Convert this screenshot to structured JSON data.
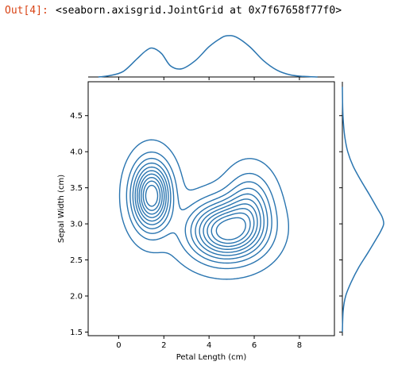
{
  "cell": {
    "prompt": "Out[4]:",
    "text": "<seaborn.axisgrid.JointGrid at 0x7f67658f77f0>"
  },
  "chart_data": {
    "type": "kde-joint",
    "xlabel": "Petal Length (cm)",
    "ylabel": "Sepal Width (cm)",
    "xlim": [
      -1.35,
      9.55
    ],
    "ylim": [
      1.45,
      4.97
    ],
    "xticks": [
      "0",
      "2",
      "4",
      "6",
      "8"
    ],
    "xtick_values": [
      0,
      2,
      4,
      6,
      8
    ],
    "yticks": [
      "1.5",
      "2.0",
      "2.5",
      "3.0",
      "3.5",
      "4.0",
      "4.5"
    ],
    "ytick_values": [
      1.5,
      2.0,
      2.5,
      3.0,
      3.5,
      4.0,
      4.5
    ],
    "line_color": "#2a75b0",
    "components": [
      {
        "cx": 1.46,
        "cy": 3.39,
        "sx": 0.55,
        "sy": 0.3,
        "weight": 0.33
      },
      {
        "cx": 4.75,
        "cy": 2.9,
        "sx": 1.05,
        "sy": 0.26,
        "weight": 0.52
      },
      {
        "cx": 5.8,
        "cy": 3.25,
        "sx": 0.65,
        "sy": 0.3,
        "weight": 0.15
      }
    ],
    "contour_levels": 10,
    "top_marginal": {
      "axis": "x",
      "x": [
        -0.9,
        -0.4,
        0.2,
        0.8,
        1.2,
        1.5,
        1.9,
        2.3,
        2.8,
        3.4,
        4.0,
        4.5,
        4.8,
        5.2,
        5.8,
        6.4,
        7.0,
        7.6,
        8.2,
        8.8
      ],
      "density": [
        0.0,
        0.01,
        0.04,
        0.13,
        0.19,
        0.21,
        0.17,
        0.08,
        0.06,
        0.12,
        0.22,
        0.28,
        0.3,
        0.29,
        0.22,
        0.12,
        0.05,
        0.015,
        0.004,
        0.0
      ]
    },
    "right_marginal": {
      "axis": "y",
      "y": [
        1.5,
        1.8,
        2.0,
        2.2,
        2.4,
        2.6,
        2.8,
        2.9,
        3.0,
        3.1,
        3.2,
        3.4,
        3.6,
        3.8,
        4.0,
        4.2,
        4.4,
        4.6,
        4.9
      ],
      "density": [
        0.0,
        0.02,
        0.08,
        0.22,
        0.4,
        0.62,
        0.83,
        0.93,
        1.0,
        0.96,
        0.86,
        0.66,
        0.45,
        0.26,
        0.13,
        0.06,
        0.025,
        0.008,
        0.0
      ]
    }
  }
}
